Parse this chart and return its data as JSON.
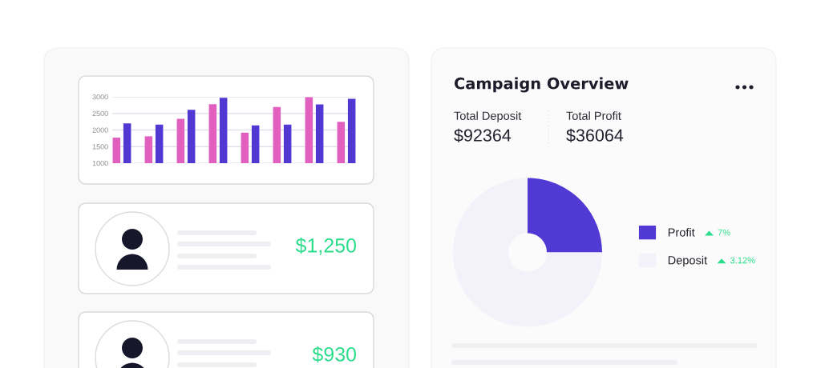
{
  "chart_data": [
    {
      "type": "bar",
      "categories": [
        null,
        null,
        null,
        null,
        null,
        null,
        null,
        null
      ],
      "series": [
        {
          "color": "#e160bf",
          "values": [
            1770,
            1810,
            2340,
            2780,
            1920,
            2690,
            2990,
            2250
          ]
        },
        {
          "color": "#5238d3",
          "values": [
            2200,
            2160,
            2610,
            2970,
            2140,
            2160,
            2770,
            2940
          ]
        }
      ],
      "ylim": [
        1000,
        3000
      ],
      "yticks": [
        1000,
        1500,
        2000,
        2500,
        3000
      ],
      "grid": "y",
      "tick_labels": "y"
    },
    {
      "type": "other",
      "annotations": [
        "$1,250",
        "$930"
      ]
    },
    {
      "type": "donut",
      "title": "Campaign Overview",
      "categories": [
        "Profit",
        "Deposit"
      ],
      "values": [
        25,
        75
      ],
      "colors": [
        "#503ad3",
        "#f3f1f9"
      ],
      "legend": "right",
      "annotations": [
        "Total Deposit",
        "$92364",
        "Total Profit",
        "$36064",
        "7%",
        "3.12%"
      ]
    }
  ]
}
